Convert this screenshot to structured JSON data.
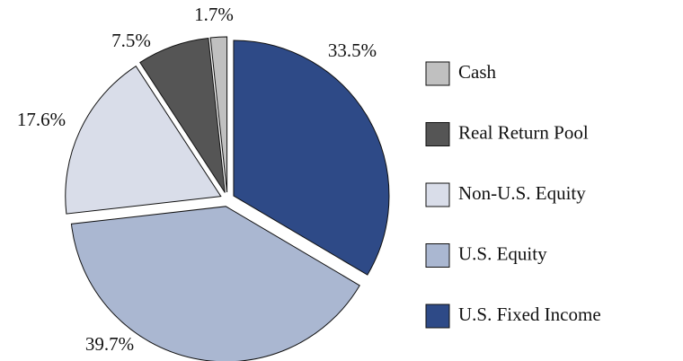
{
  "chart_data": {
    "type": "pie",
    "categories": [
      "U.S. Fixed Income",
      "U.S. Equity",
      "Non-U.S. Equity",
      "Real Return Pool",
      "Cash"
    ],
    "values": [
      33.5,
      39.7,
      17.6,
      7.5,
      1.7
    ],
    "value_labels": [
      "33.5%",
      "39.7%",
      "17.6%",
      "7.5%",
      "1.7%"
    ],
    "colors": [
      "#2e4a87",
      "#aab7d1",
      "#d9dde9",
      "#555555",
      "#c0c0c0"
    ],
    "legend": "right"
  }
}
